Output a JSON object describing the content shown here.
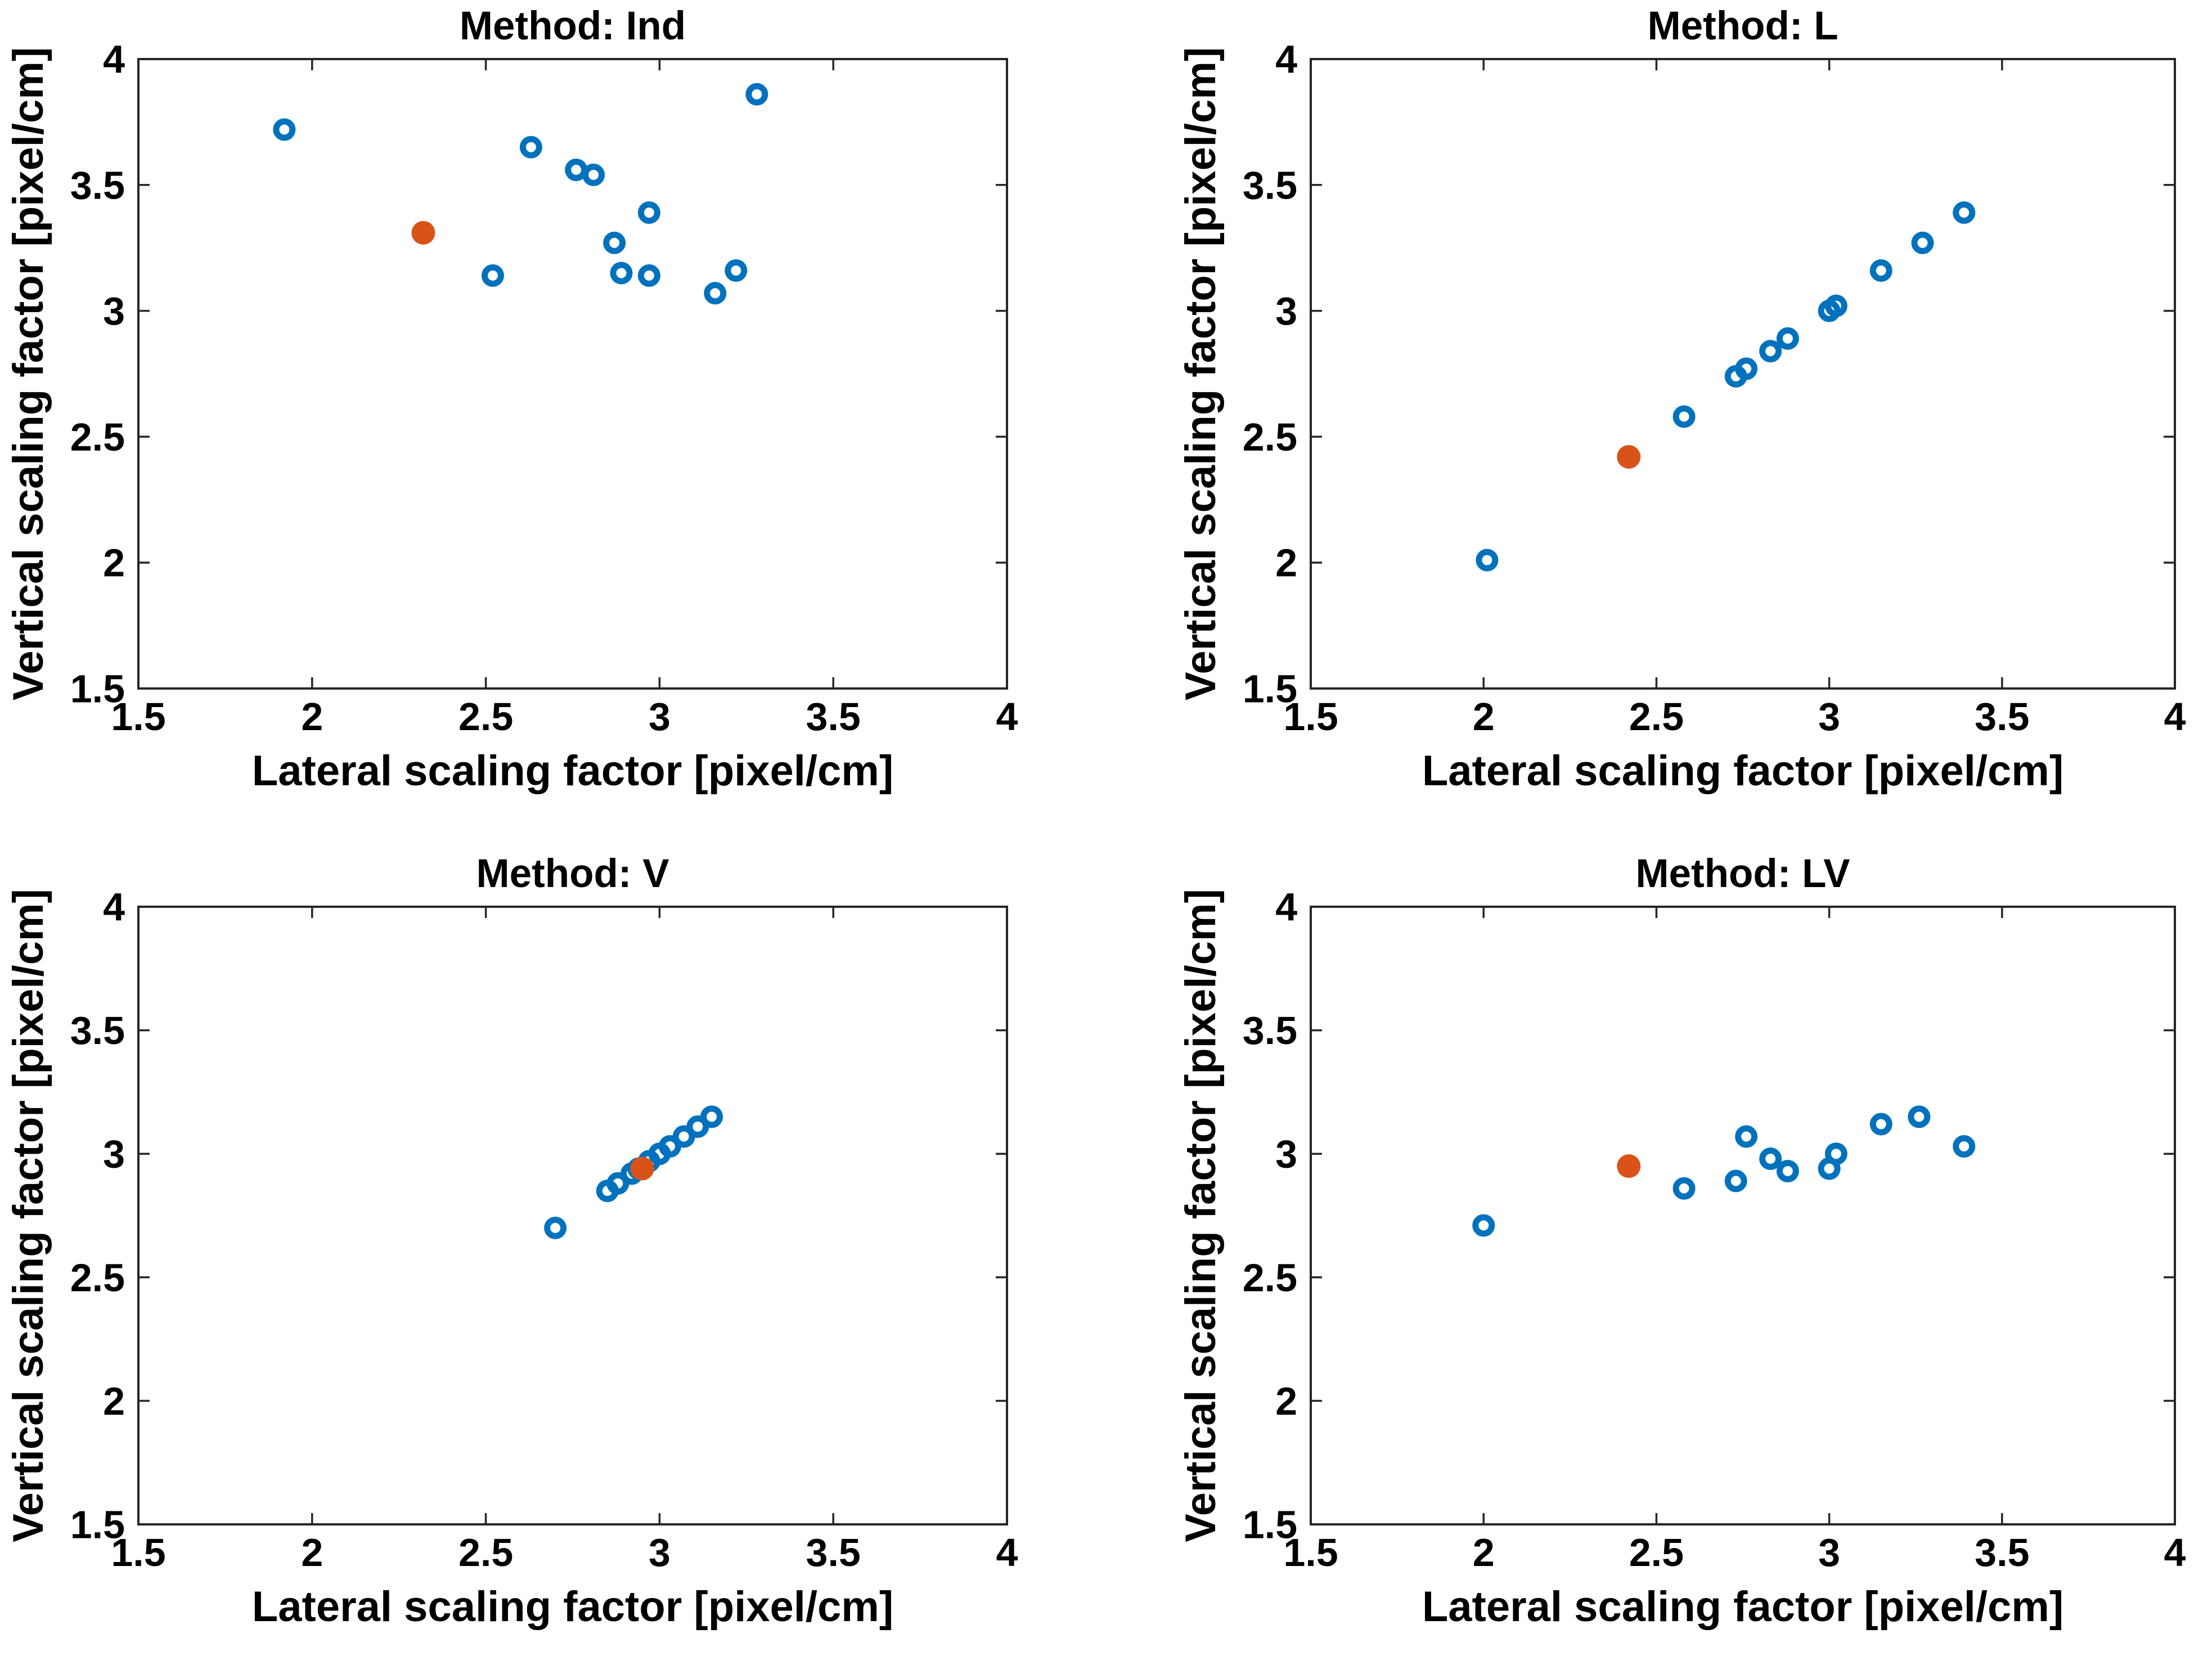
{
  "figure": {
    "background": "#ffffff",
    "axis_color": "#262626",
    "text_color": "#000000",
    "open_marker_color": "#0072BD",
    "filled_marker_color": "#D95319"
  },
  "chart_data": [
    {
      "type": "scatter",
      "title": "Method: Ind",
      "xlabel": "Lateral scaling factor [pixel/cm]",
      "ylabel": "Vertical scaling factor [pixel/cm]",
      "xlim": [
        1.5,
        4
      ],
      "ylim": [
        1.5,
        4
      ],
      "xticks": [
        1.5,
        2,
        2.5,
        3,
        3.5,
        4
      ],
      "yticks": [
        1.5,
        2,
        2.5,
        3,
        3.5,
        4
      ],
      "xtick_labels": [
        "1.5",
        "2",
        "2.5",
        "3",
        "3.5",
        "4"
      ],
      "ytick_labels": [
        "1.5",
        "2",
        "2.5",
        "3",
        "3.5",
        "4"
      ],
      "grid": false,
      "legend": null,
      "series": [
        {
          "name": "open-circle-points",
          "marker": "open-circle",
          "color": "#0072BD",
          "points": [
            [
              1.92,
              3.72
            ],
            [
              2.52,
              3.14
            ],
            [
              2.63,
              3.65
            ],
            [
              2.76,
              3.56
            ],
            [
              2.81,
              3.54
            ],
            [
              2.87,
              3.27
            ],
            [
              2.89,
              3.15
            ],
            [
              2.97,
              3.39
            ],
            [
              2.97,
              3.14
            ],
            [
              3.16,
              3.07
            ],
            [
              3.22,
              3.16
            ],
            [
              3.28,
              3.86
            ]
          ]
        },
        {
          "name": "filled-circle-point",
          "marker": "filled-circle",
          "color": "#D95319",
          "points": [
            [
              2.32,
              3.31
            ]
          ]
        }
      ]
    },
    {
      "type": "scatter",
      "title": "Method: L",
      "xlabel": "Lateral scaling factor [pixel/cm]",
      "ylabel": "Vertical scaling factor [pixel/cm]",
      "xlim": [
        1.5,
        4
      ],
      "ylim": [
        1.5,
        4
      ],
      "xticks": [
        1.5,
        2,
        2.5,
        3,
        3.5,
        4
      ],
      "yticks": [
        1.5,
        2,
        2.5,
        3,
        3.5,
        4
      ],
      "xtick_labels": [
        "1.5",
        "2",
        "2.5",
        "3",
        "3.5",
        "4"
      ],
      "ytick_labels": [
        "1.5",
        "2",
        "2.5",
        "3",
        "3.5",
        "4"
      ],
      "grid": false,
      "legend": null,
      "series": [
        {
          "name": "open-circle-points",
          "marker": "open-circle",
          "color": "#0072BD",
          "points": [
            [
              2.01,
              2.01
            ],
            [
              2.58,
              2.58
            ],
            [
              2.73,
              2.74
            ],
            [
              2.76,
              2.77
            ],
            [
              2.83,
              2.84
            ],
            [
              2.88,
              2.89
            ],
            [
              3.0,
              3.0
            ],
            [
              3.02,
              3.02
            ],
            [
              3.15,
              3.16
            ],
            [
              3.27,
              3.27
            ],
            [
              3.39,
              3.39
            ]
          ]
        },
        {
          "name": "filled-circle-point",
          "marker": "filled-circle",
          "color": "#D95319",
          "points": [
            [
              2.42,
              2.42
            ]
          ]
        }
      ]
    },
    {
      "type": "scatter",
      "title": "Method: V",
      "xlabel": "Lateral scaling factor [pixel/cm]",
      "ylabel": "Vertical scaling factor [pixel/cm]",
      "xlim": [
        1.5,
        4
      ],
      "ylim": [
        1.5,
        4
      ],
      "xticks": [
        1.5,
        2,
        2.5,
        3,
        3.5,
        4
      ],
      "yticks": [
        1.5,
        2,
        2.5,
        3,
        3.5,
        4
      ],
      "xtick_labels": [
        "1.5",
        "2",
        "2.5",
        "3",
        "3.5",
        "4"
      ],
      "ytick_labels": [
        "1.5",
        "2",
        "2.5",
        "3",
        "3.5",
        "4"
      ],
      "grid": false,
      "legend": null,
      "series": [
        {
          "name": "open-circle-points",
          "marker": "open-circle",
          "color": "#0072BD",
          "points": [
            [
              2.7,
              2.7
            ],
            [
              2.85,
              2.85
            ],
            [
              2.88,
              2.88
            ],
            [
              2.92,
              2.92
            ],
            [
              2.94,
              2.94
            ],
            [
              2.97,
              2.97
            ],
            [
              3.0,
              3.0
            ],
            [
              3.03,
              3.03
            ],
            [
              3.07,
              3.07
            ],
            [
              3.11,
              3.11
            ],
            [
              3.15,
              3.15
            ]
          ]
        },
        {
          "name": "filled-circle-point",
          "marker": "filled-circle",
          "color": "#D95319",
          "points": [
            [
              2.95,
              2.94
            ]
          ]
        }
      ]
    },
    {
      "type": "scatter",
      "title": "Method: LV",
      "xlabel": "Lateral scaling factor [pixel/cm]",
      "ylabel": "Vertical scaling factor [pixel/cm]",
      "xlim": [
        1.5,
        4
      ],
      "ylim": [
        1.5,
        4
      ],
      "xticks": [
        1.5,
        2,
        2.5,
        3,
        3.5,
        4
      ],
      "yticks": [
        1.5,
        2,
        2.5,
        3,
        3.5,
        4
      ],
      "xtick_labels": [
        "1.5",
        "2",
        "2.5",
        "3",
        "3.5",
        "4"
      ],
      "ytick_labels": [
        "1.5",
        "2",
        "2.5",
        "3",
        "3.5",
        "4"
      ],
      "grid": false,
      "legend": null,
      "series": [
        {
          "name": "open-circle-points",
          "marker": "open-circle",
          "color": "#0072BD",
          "points": [
            [
              2.0,
              2.71
            ],
            [
              2.58,
              2.86
            ],
            [
              2.73,
              2.89
            ],
            [
              2.76,
              3.07
            ],
            [
              2.83,
              2.98
            ],
            [
              2.88,
              2.93
            ],
            [
              3.0,
              2.94
            ],
            [
              3.02,
              3.0
            ],
            [
              3.15,
              3.12
            ],
            [
              3.26,
              3.15
            ],
            [
              3.39,
              3.03
            ]
          ]
        },
        {
          "name": "filled-circle-point",
          "marker": "filled-circle",
          "color": "#D95319",
          "points": [
            [
              2.42,
              2.95
            ]
          ]
        }
      ]
    }
  ]
}
